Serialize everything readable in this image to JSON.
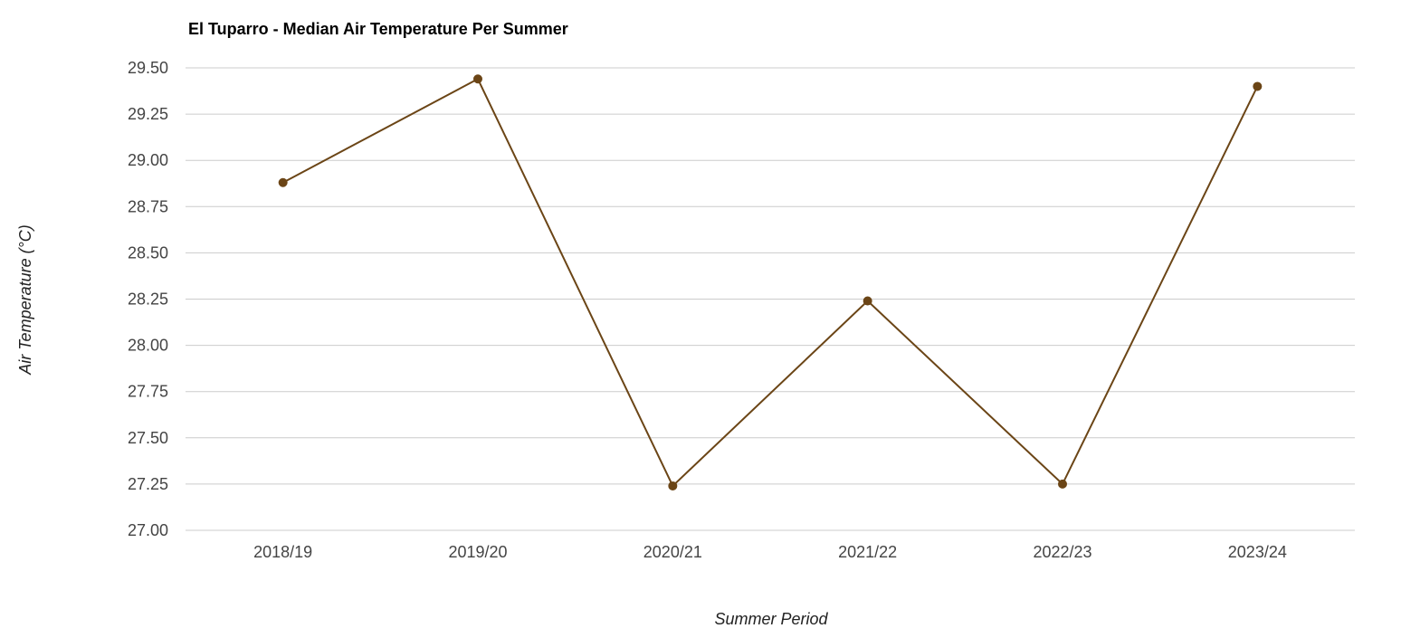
{
  "chart_data": {
    "type": "line",
    "title": "El Tuparro - Median Air Temperature Per Summer",
    "xlabel": "Summer Period",
    "ylabel": "Air Temperature (°C)",
    "categories": [
      "2018/19",
      "2019/20",
      "2020/21",
      "2021/22",
      "2022/23",
      "2023/24"
    ],
    "series": [
      {
        "values": [
          28.88,
          29.44,
          27.24,
          28.24,
          27.25,
          29.4
        ]
      }
    ],
    "ylim": [
      27.0,
      29.5
    ],
    "yticks": [
      "27.00",
      "27.25",
      "27.50",
      "27.75",
      "28.00",
      "28.25",
      "28.50",
      "28.75",
      "29.00",
      "29.25",
      "29.50"
    ],
    "grid": true,
    "legend": "none",
    "colors": {
      "series": "#6b4516",
      "grid": "#cccccc",
      "tick_text": "#444444"
    }
  }
}
